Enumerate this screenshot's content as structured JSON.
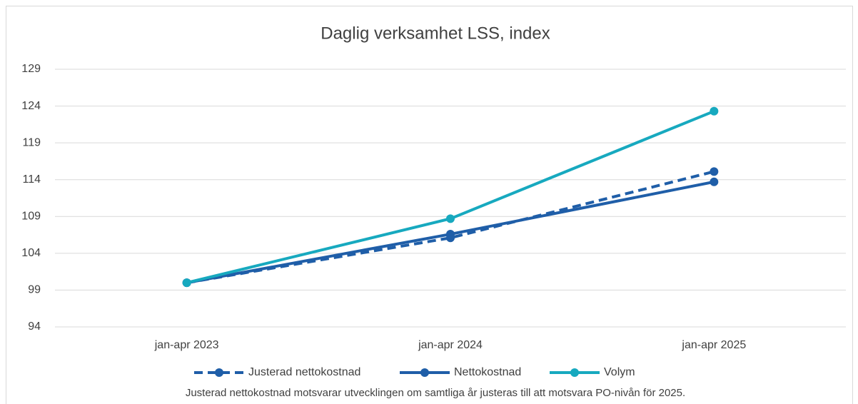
{
  "chart_data": {
    "type": "line",
    "title": "Daglig verksamhet LSS, index",
    "categories": [
      "jan-apr 2023",
      "jan-apr 2024",
      "jan-apr 2025"
    ],
    "series": [
      {
        "name": "Justerad nettokostnad",
        "color": "#1f5ea8",
        "dashed": true,
        "values": [
          100,
          106.1,
          115.1
        ]
      },
      {
        "name": "Nettokostnad",
        "color": "#1f5ea8",
        "dashed": false,
        "values": [
          100,
          106.6,
          113.7
        ]
      },
      {
        "name": "Volym",
        "color": "#17a9bf",
        "dashed": false,
        "values": [
          100,
          108.7,
          123.3
        ]
      }
    ],
    "ylim": [
      94,
      129
    ],
    "yticks": [
      94,
      99,
      104,
      109,
      114,
      119,
      124,
      129
    ],
    "grid": true,
    "legend": "bottom",
    "note": "Justerad nettokostnad motsvarar utvecklingen om samtliga år justeras till att motsvara PO-nivån för 2025."
  }
}
